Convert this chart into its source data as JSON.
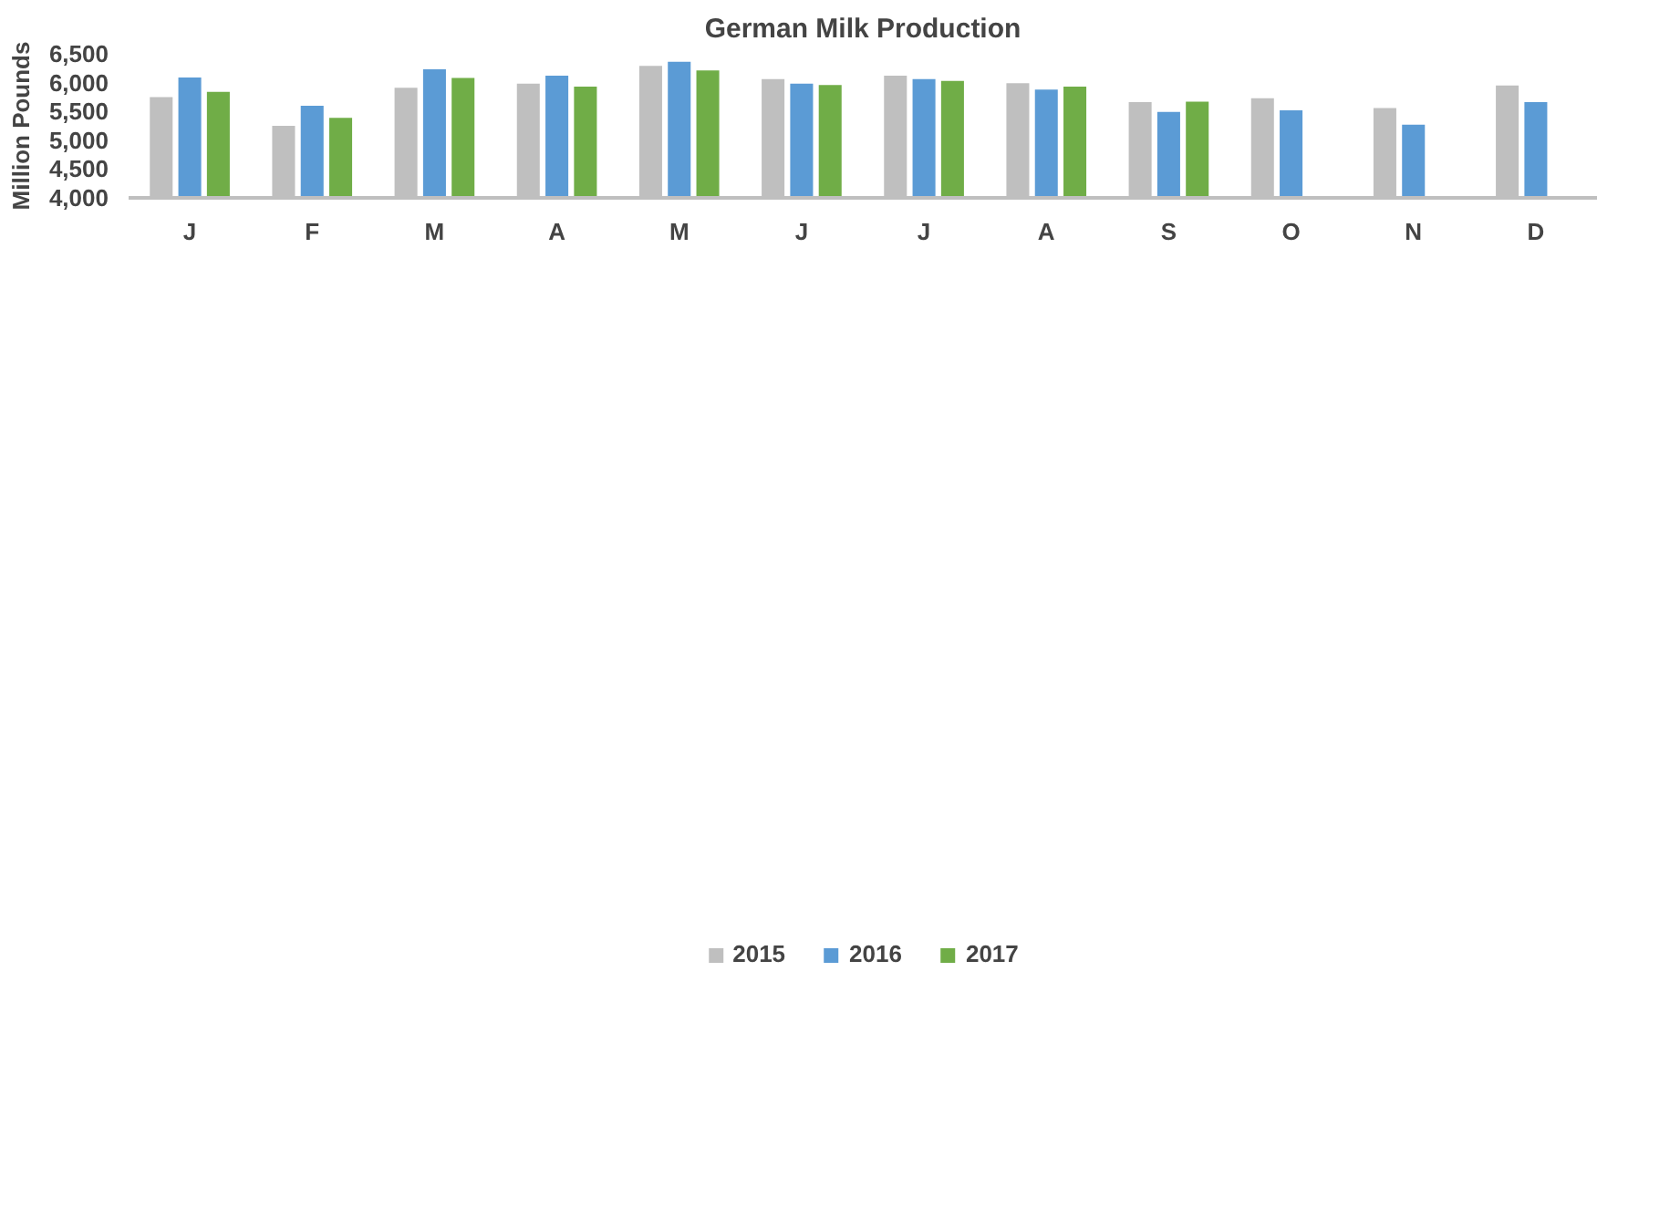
{
  "chart_data": {
    "type": "bar",
    "title": "German Milk Production",
    "ylabel": "Million Pounds",
    "categories": [
      "J",
      "F",
      "M",
      "A",
      "M",
      "J",
      "J",
      "A",
      "S",
      "O",
      "N",
      "D"
    ],
    "series": [
      {
        "name": "2015",
        "color": "#bfbfbf",
        "values": [
          5750,
          5250,
          5910,
          5980,
          6290,
          6060,
          6120,
          5990,
          5660,
          5730,
          5560,
          5950
        ]
      },
      {
        "name": "2016",
        "color": "#5b9bd5",
        "values": [
          6090,
          5600,
          6230,
          6120,
          6360,
          5980,
          6060,
          5880,
          5490,
          5520,
          5270,
          5660
        ]
      },
      {
        "name": "2017",
        "color": "#70ad47",
        "values": [
          5840,
          5390,
          6080,
          5930,
          6210,
          5960,
          6030,
          5930,
          5670,
          null,
          null,
          null
        ]
      }
    ],
    "ylim": [
      4000,
      6500
    ],
    "yticks": [
      {
        "value": 4000,
        "label": "4,000"
      },
      {
        "value": 4500,
        "label": "4,500"
      },
      {
        "value": 5000,
        "label": "5,000"
      },
      {
        "value": 5500,
        "label": "5,500"
      },
      {
        "value": 6000,
        "label": "6,000"
      },
      {
        "value": 6500,
        "label": "6,500"
      }
    ],
    "grid": false,
    "legend": "bottom"
  }
}
